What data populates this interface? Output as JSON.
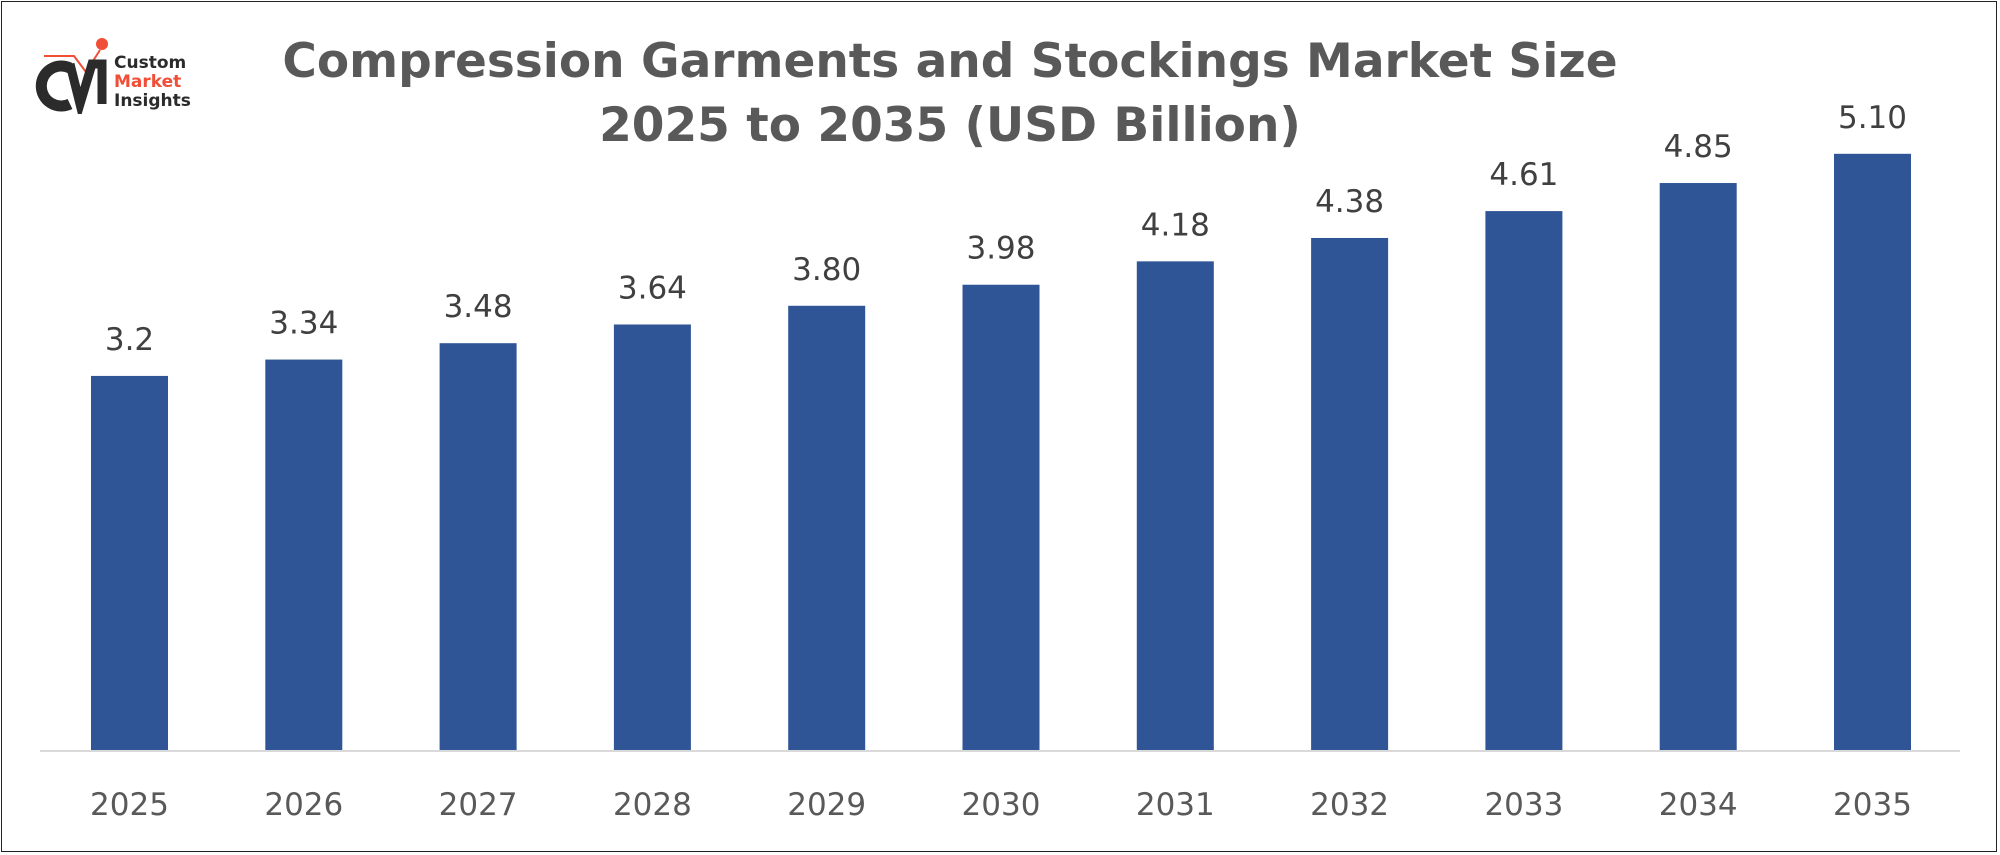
{
  "logo": {
    "line1": "Custom",
    "line2": "Market",
    "line3": "Insights",
    "accent_color": "#F04E37",
    "dark_color": "#2B2B2B"
  },
  "chart_data": {
    "type": "bar",
    "title": "Compression Garments and Stockings Market Size 2025 to 2035 (USD Billion)",
    "title_line1": "Compression Garments and Stockings Market Size",
    "title_line2": "2025 to 2035 (USD Billion)",
    "categories": [
      "2025",
      "2026",
      "2027",
      "2028",
      "2029",
      "2030",
      "2031",
      "2032",
      "2033",
      "2034",
      "2035"
    ],
    "values": [
      3.2,
      3.34,
      3.48,
      3.64,
      3.8,
      3.98,
      4.18,
      4.38,
      4.61,
      4.85,
      5.1
    ],
    "data_labels": [
      "3.2",
      "3.34",
      "3.48",
      "3.64",
      "3.80",
      "3.98",
      "4.18",
      "4.38",
      "4.61",
      "4.85",
      "5.10"
    ],
    "xlabel": "",
    "ylabel": "",
    "ylim": [
      0,
      5.1
    ],
    "grid": false,
    "legend": "none",
    "bar_color": "#2F5597"
  }
}
